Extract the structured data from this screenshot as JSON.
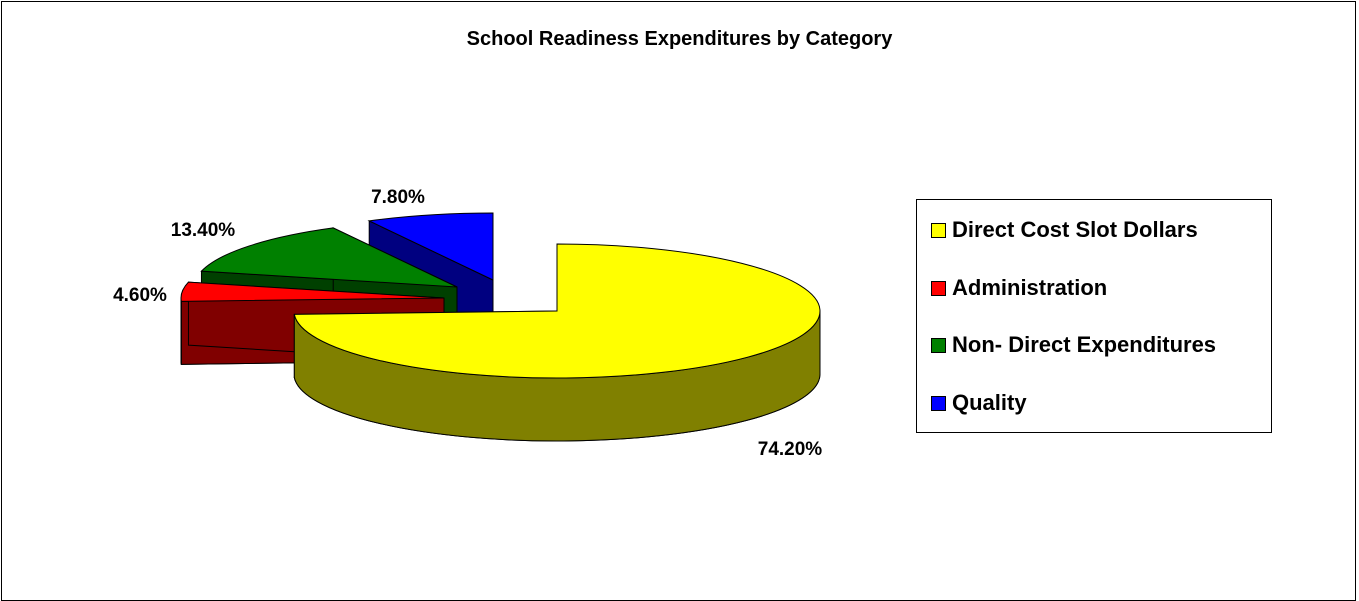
{
  "chart_data": {
    "type": "pie",
    "title": "School Readiness Expenditures by Category",
    "legend_position": "right",
    "slices": [
      {
        "name": "Direct Cost Slot Dollars",
        "value": 74.2,
        "label": "74.20%",
        "color": "#FFFF00",
        "side_color": "#808000"
      },
      {
        "name": "Administration",
        "value": 4.6,
        "label": "4.60%",
        "color": "#FF0000",
        "side_color": "#800000"
      },
      {
        "name": "Non- Direct Expenditures",
        "value": 13.4,
        "label": "13.40%",
        "color": "#008000",
        "side_color": "#004000"
      },
      {
        "name": "Quality",
        "value": 7.8,
        "label": "7.80%",
        "color": "#0000FF",
        "side_color": "#000080"
      }
    ]
  }
}
